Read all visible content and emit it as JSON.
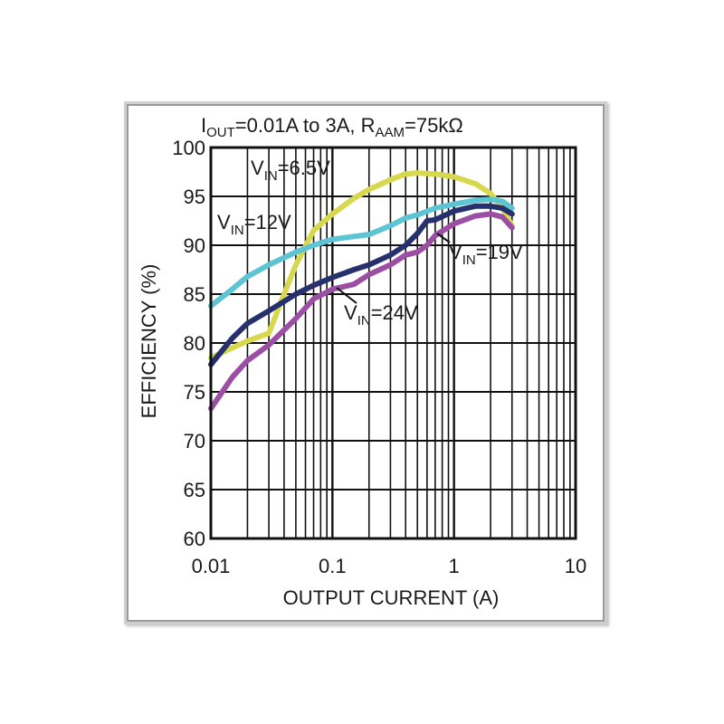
{
  "chart_data": {
    "type": "line",
    "title": {
      "i": "I",
      "i_sub": "OUT",
      "mid": "=0.01A to 3A, R",
      "r_sub": "AAM",
      "end": "=75kΩ"
    },
    "xlabel": "OUTPUT CURRENT (A)",
    "ylabel": "EFFICIENCY (%)",
    "x_scale": "log",
    "xlim": [
      0.01,
      10
    ],
    "ylim": [
      60,
      100
    ],
    "x_ticks": [
      "0.01",
      "0.1",
      "1",
      "10"
    ],
    "y_ticks": [
      "60",
      "65",
      "70",
      "75",
      "80",
      "85",
      "90",
      "95",
      "100"
    ],
    "grid": true,
    "series": [
      {
        "key": "v65",
        "label": {
          "main": "V",
          "sub": "IN",
          "rest": "=6.5V"
        },
        "color": "#d8d84e",
        "points": [
          [
            0.01,
            78.5
          ],
          [
            0.015,
            79.5
          ],
          [
            0.02,
            80.2
          ],
          [
            0.03,
            81
          ],
          [
            0.04,
            85
          ],
          [
            0.05,
            88
          ],
          [
            0.07,
            91.5
          ],
          [
            0.1,
            93.2
          ],
          [
            0.15,
            94.8
          ],
          [
            0.2,
            95.7
          ],
          [
            0.3,
            96.7
          ],
          [
            0.4,
            97.3
          ],
          [
            0.5,
            97.4
          ],
          [
            0.7,
            97.3
          ],
          [
            1,
            97
          ],
          [
            1.5,
            96.3
          ],
          [
            2,
            95.3
          ],
          [
            2.5,
            93.8
          ],
          [
            3,
            92
          ]
        ]
      },
      {
        "key": "v12",
        "label": {
          "main": "V",
          "sub": "IN",
          "rest": "=12V"
        },
        "color": "#5cc4d2",
        "points": [
          [
            0.01,
            83.8
          ],
          [
            0.015,
            85.5
          ],
          [
            0.02,
            86.8
          ],
          [
            0.03,
            88
          ],
          [
            0.05,
            89.3
          ],
          [
            0.07,
            90
          ],
          [
            0.1,
            90.6
          ],
          [
            0.15,
            90.9
          ],
          [
            0.2,
            91.1
          ],
          [
            0.3,
            92
          ],
          [
            0.4,
            92.8
          ],
          [
            0.5,
            93.1
          ],
          [
            0.7,
            93.8
          ],
          [
            1,
            94.2
          ],
          [
            1.5,
            94.6
          ],
          [
            2,
            94.7
          ],
          [
            2.5,
            94.5
          ],
          [
            3,
            93.8
          ]
        ]
      },
      {
        "key": "v19",
        "label": {
          "main": "V",
          "sub": "IN",
          "rest": "=19V"
        },
        "color": "#25306c",
        "points": [
          [
            0.01,
            77.8
          ],
          [
            0.015,
            80.5
          ],
          [
            0.02,
            82
          ],
          [
            0.03,
            83.3
          ],
          [
            0.05,
            85
          ],
          [
            0.07,
            85.9
          ],
          [
            0.1,
            86.7
          ],
          [
            0.15,
            87.5
          ],
          [
            0.2,
            88
          ],
          [
            0.3,
            89
          ],
          [
            0.4,
            90
          ],
          [
            0.5,
            91.2
          ],
          [
            0.6,
            92.5
          ],
          [
            0.7,
            92.6
          ],
          [
            1,
            93.5
          ],
          [
            1.5,
            94
          ],
          [
            2,
            94
          ],
          [
            2.5,
            93.8
          ],
          [
            3,
            93.2
          ]
        ]
      },
      {
        "key": "v24",
        "label": {
          "main": "V",
          "sub": "IN",
          "rest": "=24V"
        },
        "color": "#9b4ea4",
        "points": [
          [
            0.01,
            73.3
          ],
          [
            0.015,
            76.5
          ],
          [
            0.02,
            78.2
          ],
          [
            0.03,
            79.8
          ],
          [
            0.05,
            82.5
          ],
          [
            0.07,
            84.5
          ],
          [
            0.1,
            85.5
          ],
          [
            0.15,
            86
          ],
          [
            0.2,
            87
          ],
          [
            0.3,
            88
          ],
          [
            0.4,
            89
          ],
          [
            0.5,
            89.3
          ],
          [
            0.6,
            90
          ],
          [
            0.7,
            91
          ],
          [
            1,
            92.2
          ],
          [
            1.5,
            93
          ],
          [
            2,
            93.2
          ],
          [
            2.5,
            92.9
          ],
          [
            3,
            91.8
          ]
        ]
      }
    ]
  }
}
